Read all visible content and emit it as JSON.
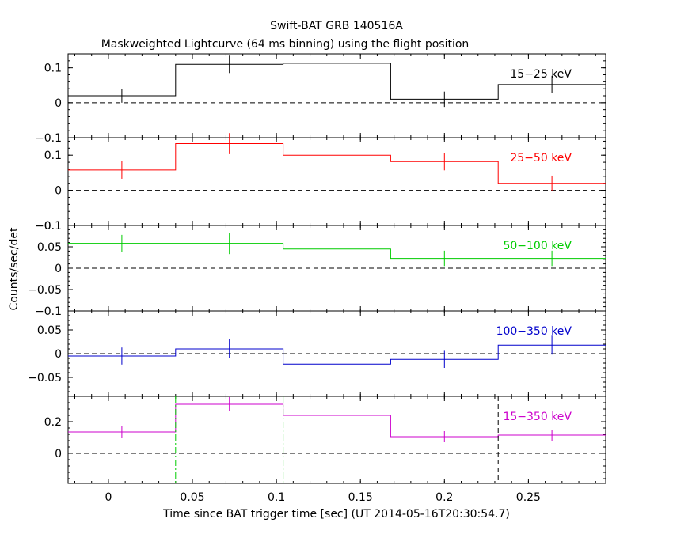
{
  "chart_data": {
    "type": "line",
    "title": "Swift-BAT GRB 140516A",
    "subtitle": "Maskweighted Lightcurve (64 ms binning) using the flight position",
    "xlabel": "Time since BAT trigger time [sec] (UT 2014-05-16T20:30:54.7)",
    "ylabel": "Counts/sec/det",
    "xlim": [
      -0.024,
      0.296
    ],
    "x_ticks": [
      0,
      0.05,
      0.1,
      0.15,
      0.2,
      0.25
    ],
    "x_tick_labels": [
      "0",
      "0.05",
      "0.1",
      "0.15",
      "0.2",
      "0.25"
    ],
    "bin_edges": [
      -0.024,
      0.04,
      0.104,
      0.168,
      0.232,
      0.296
    ],
    "bin_centers": [
      0.008,
      0.072,
      0.136,
      0.2,
      0.264
    ],
    "vertical_markers": [
      {
        "x": 0.04,
        "style": "dash-dot",
        "color": "#00cc00"
      },
      {
        "x": 0.104,
        "style": "dash-dot",
        "color": "#00cc00"
      },
      {
        "x": 0.232,
        "style": "dashed",
        "color": "#000000"
      }
    ],
    "panels": [
      {
        "band": "15-25 keV",
        "color": "#000000",
        "ylim": [
          -0.1,
          0.14
        ],
        "yticks": [
          -0.1,
          0,
          0.1
        ],
        "ytick_labels": [
          "-0.1",
          "0",
          "0.1"
        ],
        "values": [
          0.02,
          0.11,
          0.113,
          0.01,
          0.052
        ],
        "errors": [
          0.02,
          0.025,
          0.025,
          0.022,
          0.025
        ]
      },
      {
        "band": "25-50 keV",
        "color": "#ff0000",
        "ylim": [
          -0.1,
          0.15
        ],
        "yticks": [
          -0.1,
          0,
          0.1
        ],
        "ytick_labels": [
          "-0.1",
          "0",
          "0.1"
        ],
        "values": [
          0.058,
          0.133,
          0.1,
          0.082,
          0.02
        ],
        "errors": [
          0.025,
          0.03,
          0.025,
          0.025,
          0.022
        ]
      },
      {
        "band": "50-100 keV",
        "color": "#00cc00",
        "ylim": [
          -0.1,
          0.1
        ],
        "yticks": [
          -0.1,
          -0.05,
          0,
          0.05,
          0.1
        ],
        "ytick_labels": [
          "-0.1",
          "-0.05",
          "0",
          "0.05",
          "0.1"
        ],
        "values": [
          0.058,
          0.058,
          0.045,
          0.023,
          0.023
        ],
        "errors": [
          0.02,
          0.025,
          0.02,
          0.018,
          0.018
        ]
      },
      {
        "band": "100-350 keV",
        "color": "#0000cc",
        "ylim": [
          -0.09,
          0.09
        ],
        "yticks": [
          -0.05,
          0,
          0.05
        ],
        "ytick_labels": [
          "-0.05",
          "0",
          "0.05"
        ],
        "values": [
          -0.005,
          0.01,
          -0.022,
          -0.012,
          0.018
        ],
        "errors": [
          0.018,
          0.02,
          0.018,
          0.018,
          0.02
        ]
      },
      {
        "band": "15-350 keV",
        "color": "#cc00cc",
        "ylim": [
          -0.19,
          0.36
        ],
        "yticks": [
          0,
          0.2
        ],
        "ytick_labels": [
          "0",
          "0.2"
        ],
        "values": [
          0.135,
          0.31,
          0.24,
          0.105,
          0.115
        ],
        "errors": [
          0.04,
          0.045,
          0.04,
          0.035,
          0.035
        ]
      }
    ]
  }
}
